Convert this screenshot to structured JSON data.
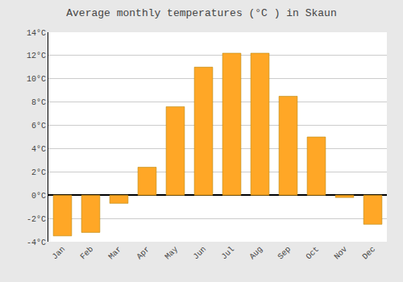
{
  "chart_data": {
    "type": "bar",
    "title": "Average monthly temperatures (°C ) in Skaun",
    "categories": [
      "Jan",
      "Feb",
      "Mar",
      "Apr",
      "May",
      "Jun",
      "Jul",
      "Aug",
      "Sep",
      "Oct",
      "Nov",
      "Dec"
    ],
    "values": [
      -3.5,
      -3.2,
      -0.7,
      2.4,
      7.6,
      11.0,
      12.2,
      12.2,
      8.5,
      5.0,
      -0.2,
      -2.5
    ],
    "color": "#FFA726",
    "ylim": [
      -4,
      14
    ],
    "yticks": [
      {
        "value": -4,
        "label": "-4°C"
      },
      {
        "value": -2,
        "label": "-2°C"
      },
      {
        "value": 0,
        "label": "0°C"
      },
      {
        "value": 2,
        "label": "2°C"
      },
      {
        "value": 4,
        "label": "4°C"
      },
      {
        "value": 6,
        "label": "6°C"
      },
      {
        "value": 8,
        "label": "8°C"
      },
      {
        "value": 10,
        "label": "10°C"
      },
      {
        "value": 12,
        "label": "12°C"
      },
      {
        "value": 14,
        "label": "14°C"
      }
    ],
    "grid": true
  }
}
